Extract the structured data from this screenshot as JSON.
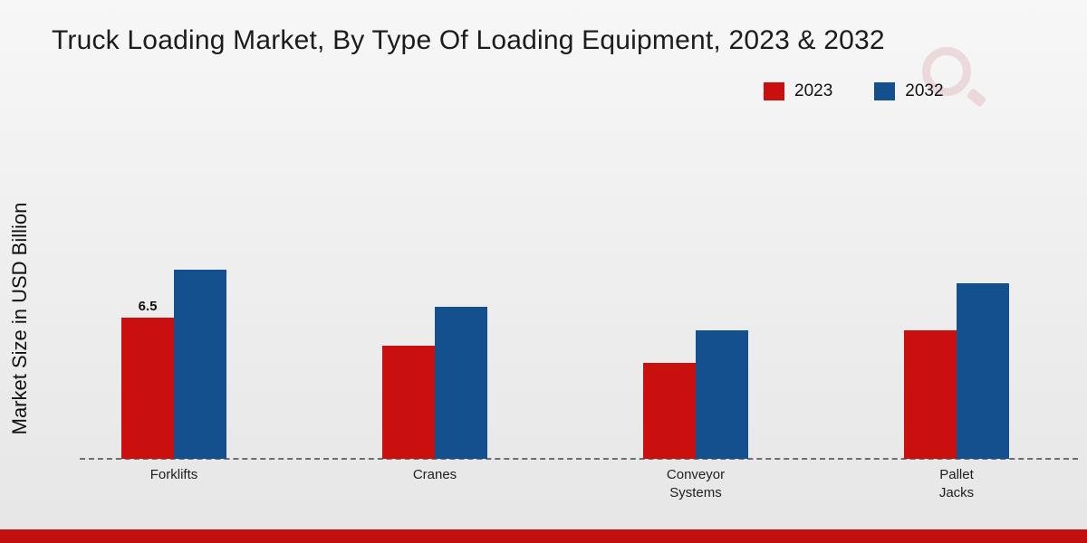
{
  "chart_data": {
    "type": "bar",
    "title": "Truck Loading Market, By Type Of Loading Equipment, 2023 & 2032",
    "ylabel": "Market Size in USD Billion",
    "xlabel": "",
    "categories": [
      "Forklifts",
      "Cranes",
      "Conveyor Systems",
      "Pallet Jacks"
    ],
    "series": [
      {
        "name": "2023",
        "color": "#c9100f",
        "values": [
          6.5,
          5.2,
          4.4,
          5.9
        ]
      },
      {
        "name": "2032",
        "color": "#15508e",
        "values": [
          8.7,
          7.0,
          5.9,
          8.1
        ]
      }
    ],
    "annotations": [
      {
        "category": "Forklifts",
        "series": "2023",
        "text": "6.5"
      }
    ],
    "ylim": [
      0,
      10
    ],
    "grid": false,
    "legend_position": "top-right",
    "baseline_style": "dashed"
  },
  "branding": {
    "watermark": "logo-mark",
    "accent_red": "#c20f0f"
  }
}
